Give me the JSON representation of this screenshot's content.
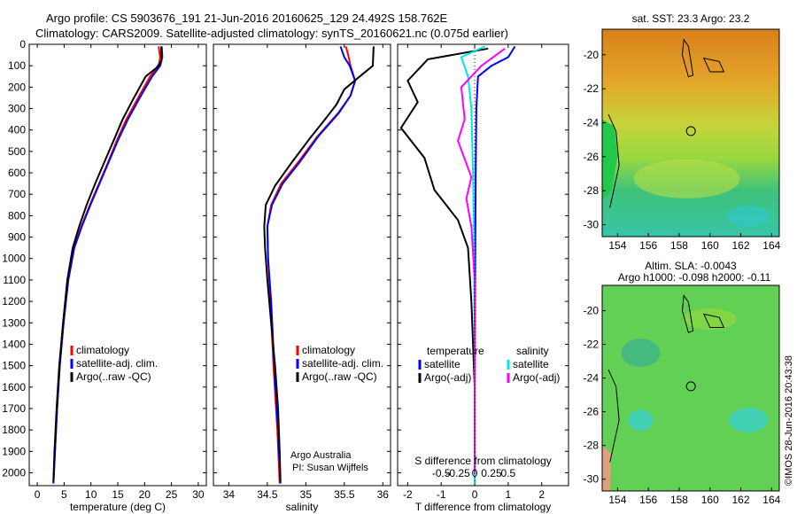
{
  "header": {
    "line1": "Argo profile: CS 5903676_191 21-Jun-2016 20160625_129 24.492S 158.762E",
    "line2": "Climatology: CARS2009. Satellite-adjusted climatology: synTS_20160621.nc (0.075d earlier)"
  },
  "colors": {
    "climatology": "#ff0000",
    "satellite": "#0000ff",
    "argo": "#000000",
    "salinity_argo": "#ff00ff",
    "salinity_sat": "#00ffff"
  },
  "chart_data": [
    {
      "type": "line",
      "xlabel": "temperature (deg C)",
      "xticks": [
        0,
        5,
        10,
        15,
        20,
        25,
        30
      ],
      "xlim": [
        -1.5,
        31.5
      ],
      "yticks": [
        0,
        100,
        200,
        300,
        400,
        500,
        600,
        700,
        800,
        900,
        1000,
        1100,
        1200,
        1300,
        1400,
        1500,
        1600,
        1700,
        1800,
        1900,
        2000
      ],
      "ylim": [
        2060,
        0
      ],
      "legend": [
        "climatology",
        "satellite-adj. clim.",
        "Argo(..raw -QC)"
      ],
      "series": [
        {
          "name": "climatology",
          "color": "red",
          "points": [
            [
              22.6,
              10
            ],
            [
              22.9,
              60
            ],
            [
              22.6,
              100
            ],
            [
              21,
              150
            ],
            [
              18.8,
              250
            ],
            [
              16.6,
              350
            ],
            [
              14.8,
              450
            ],
            [
              13.2,
              550
            ],
            [
              11.5,
              650
            ],
            [
              9.8,
              750
            ],
            [
              8.2,
              850
            ],
            [
              6.8,
              950
            ],
            [
              5.7,
              1100
            ],
            [
              4.9,
              1300
            ],
            [
              4.2,
              1500
            ],
            [
              3.7,
              1700
            ],
            [
              3.3,
              1900
            ],
            [
              3.0,
              2050
            ]
          ]
        },
        {
          "name": "satellite-adj. clim.",
          "color": "blue",
          "points": [
            [
              23.2,
              10
            ],
            [
              23.3,
              60
            ],
            [
              22.9,
              100
            ],
            [
              21.4,
              150
            ],
            [
              19.1,
              250
            ],
            [
              16.9,
              350
            ],
            [
              15,
              450
            ],
            [
              13.3,
              550
            ],
            [
              11.6,
              650
            ],
            [
              9.9,
              750
            ],
            [
              8.3,
              850
            ],
            [
              6.9,
              950
            ],
            [
              5.8,
              1100
            ],
            [
              4.9,
              1300
            ],
            [
              4.2,
              1500
            ],
            [
              3.7,
              1700
            ],
            [
              3.3,
              1900
            ],
            [
              3.0,
              2050
            ]
          ]
        },
        {
          "name": "Argo(..raw -QC)",
          "color": "black",
          "points": [
            [
              23.1,
              10
            ],
            [
              23.1,
              80
            ],
            [
              22.2,
              110
            ],
            [
              20.2,
              150
            ],
            [
              18,
              250
            ],
            [
              15.9,
              350
            ],
            [
              14.2,
              450
            ],
            [
              12.5,
              550
            ],
            [
              10.8,
              650
            ],
            [
              9.2,
              750
            ],
            [
              7.8,
              850
            ],
            [
              6.6,
              950
            ],
            [
              5.6,
              1100
            ],
            [
              4.8,
              1300
            ],
            [
              4.1,
              1500
            ],
            [
              3.6,
              1700
            ],
            [
              3.2,
              1900
            ],
            [
              3.0,
              2040
            ]
          ]
        }
      ]
    },
    {
      "type": "line",
      "xlabel": "salinity",
      "xticks": [
        34,
        34.5,
        35,
        35.5,
        36
      ],
      "xlim": [
        33.8,
        36.1
      ],
      "ylim": [
        2060,
        0
      ],
      "legend": [
        "climatology",
        "satellite-adj. clim.",
        "Argo(..raw -QC)"
      ],
      "annotation": [
        "Argo Australia",
        "PI: Susan Wijffels"
      ],
      "series": [
        {
          "name": "climatology",
          "color": "red",
          "points": [
            [
              35.52,
              10
            ],
            [
              35.55,
              50
            ],
            [
              35.58,
              100
            ],
            [
              35.64,
              170
            ],
            [
              35.58,
              240
            ],
            [
              35.42,
              320
            ],
            [
              35.15,
              430
            ],
            [
              34.9,
              550
            ],
            [
              34.68,
              650
            ],
            [
              34.55,
              750
            ],
            [
              34.5,
              850
            ],
            [
              34.51,
              1000
            ],
            [
              34.54,
              1200
            ],
            [
              34.58,
              1500
            ],
            [
              34.63,
              1800
            ],
            [
              34.66,
              2050
            ]
          ]
        },
        {
          "name": "satellite-adj. clim.",
          "color": "blue",
          "points": [
            [
              35.45,
              10
            ],
            [
              35.5,
              60
            ],
            [
              35.57,
              100
            ],
            [
              35.64,
              170
            ],
            [
              35.58,
              240
            ],
            [
              35.43,
              320
            ],
            [
              35.16,
              430
            ],
            [
              34.92,
              550
            ],
            [
              34.7,
              650
            ],
            [
              34.56,
              750
            ],
            [
              34.5,
              850
            ],
            [
              34.51,
              1000
            ],
            [
              34.55,
              1200
            ],
            [
              34.59,
              1500
            ],
            [
              34.64,
              1800
            ],
            [
              34.67,
              2050
            ]
          ]
        },
        {
          "name": "Argo(..raw -QC)",
          "color": "black",
          "points": [
            [
              35.88,
              10
            ],
            [
              35.87,
              100
            ],
            [
              35.7,
              150
            ],
            [
              35.5,
              210
            ],
            [
              35.4,
              280
            ],
            [
              35.25,
              350
            ],
            [
              35.05,
              440
            ],
            [
              34.82,
              550
            ],
            [
              34.6,
              660
            ],
            [
              34.48,
              750
            ],
            [
              34.46,
              850
            ],
            [
              34.47,
              950
            ],
            [
              34.5,
              1100
            ],
            [
              34.55,
              1300
            ],
            [
              34.6,
              1500
            ],
            [
              34.64,
              1700
            ],
            [
              34.66,
              1900
            ],
            [
              34.67,
              2040
            ]
          ]
        }
      ]
    },
    {
      "type": "line",
      "xlabel": "T difference from climatology",
      "xlabel2": "S difference from climatology",
      "xticks": [
        -2,
        -1,
        0,
        1,
        2
      ],
      "xticks_s": [
        "-0.5",
        "-0.25",
        "0",
        "0.25",
        "0.5"
      ],
      "xlim": [
        -2.3,
        2.8
      ],
      "ylim": [
        2060,
        0
      ],
      "legend_titles": [
        "temperature",
        "salinity"
      ],
      "legend": [
        "satellite",
        "Argo(-adj)",
        "satellite",
        "Argo(-adj)"
      ],
      "series": [
        {
          "name": "temperature satellite",
          "color": "blue",
          "points": [
            [
              1.2,
              10
            ],
            [
              1,
              60
            ],
            [
              0.5,
              100
            ],
            [
              0.1,
              150
            ],
            [
              0.05,
              300
            ],
            [
              0.03,
              600
            ],
            [
              0.02,
              900
            ],
            [
              0.01,
              1200
            ],
            [
              0,
              1600
            ],
            [
              0,
              2050
            ]
          ]
        },
        {
          "name": "temperature Argo(-adj)",
          "color": "black",
          "points": [
            [
              0.4,
              20
            ],
            [
              -1.4,
              70
            ],
            [
              -2,
              170
            ],
            [
              -1.7,
              270
            ],
            [
              -2.2,
              390
            ],
            [
              -1.5,
              530
            ],
            [
              -1.2,
              680
            ],
            [
              -0.5,
              820
            ],
            [
              -0.2,
              950
            ],
            [
              -0.1,
              1200
            ],
            [
              0,
              1600
            ],
            [
              0,
              2000
            ]
          ]
        },
        {
          "name": "salinity satellite",
          "color": "cyan",
          "points": [
            [
              0.3,
              10
            ],
            [
              -0.4,
              60
            ],
            [
              -0.2,
              150
            ],
            [
              -0.1,
              300
            ],
            [
              -0.05,
              600
            ],
            [
              -0.02,
              900
            ],
            [
              0,
              1500
            ],
            [
              0,
              2050
            ]
          ]
        },
        {
          "name": "salinity Argo(-adj)",
          "color": "magenta",
          "points": [
            [
              0.9,
              20
            ],
            [
              0.2,
              100
            ],
            [
              -0.4,
              200
            ],
            [
              -0.3,
              350
            ],
            [
              -0.5,
              450
            ],
            [
              -0.1,
              620
            ],
            [
              -0.25,
              720
            ],
            [
              -0.1,
              850
            ],
            [
              0,
              1100
            ],
            [
              0,
              1600
            ],
            [
              0,
              2000
            ]
          ]
        }
      ]
    },
    {
      "type": "heatmap",
      "title": "sat. SST: 23.3  Argo: 23.2",
      "xticks": [
        154,
        156,
        158,
        160,
        162,
        164
      ],
      "yticks": [
        -20,
        -22,
        -24,
        -26,
        -28,
        -30
      ],
      "xlim": [
        153,
        164.5
      ],
      "ylim": [
        -30.7,
        -18.5
      ],
      "argo_position": [
        158.76,
        -24.49
      ]
    },
    {
      "type": "heatmap",
      "title": "Altim. SLA: -0.0043",
      "subtitle": "Argo h1000: -0.098  h2000: -0.11",
      "xticks": [
        154,
        156,
        158,
        160,
        162,
        164
      ],
      "yticks": [
        -20,
        -22,
        -24,
        -26,
        -28,
        -30
      ],
      "xlim": [
        153,
        164.5
      ],
      "ylim": [
        -30.7,
        -18.5
      ],
      "argo_position": [
        158.76,
        -24.49
      ]
    }
  ],
  "credit": "©IMOS 28-Jun-2016 20:43:38"
}
